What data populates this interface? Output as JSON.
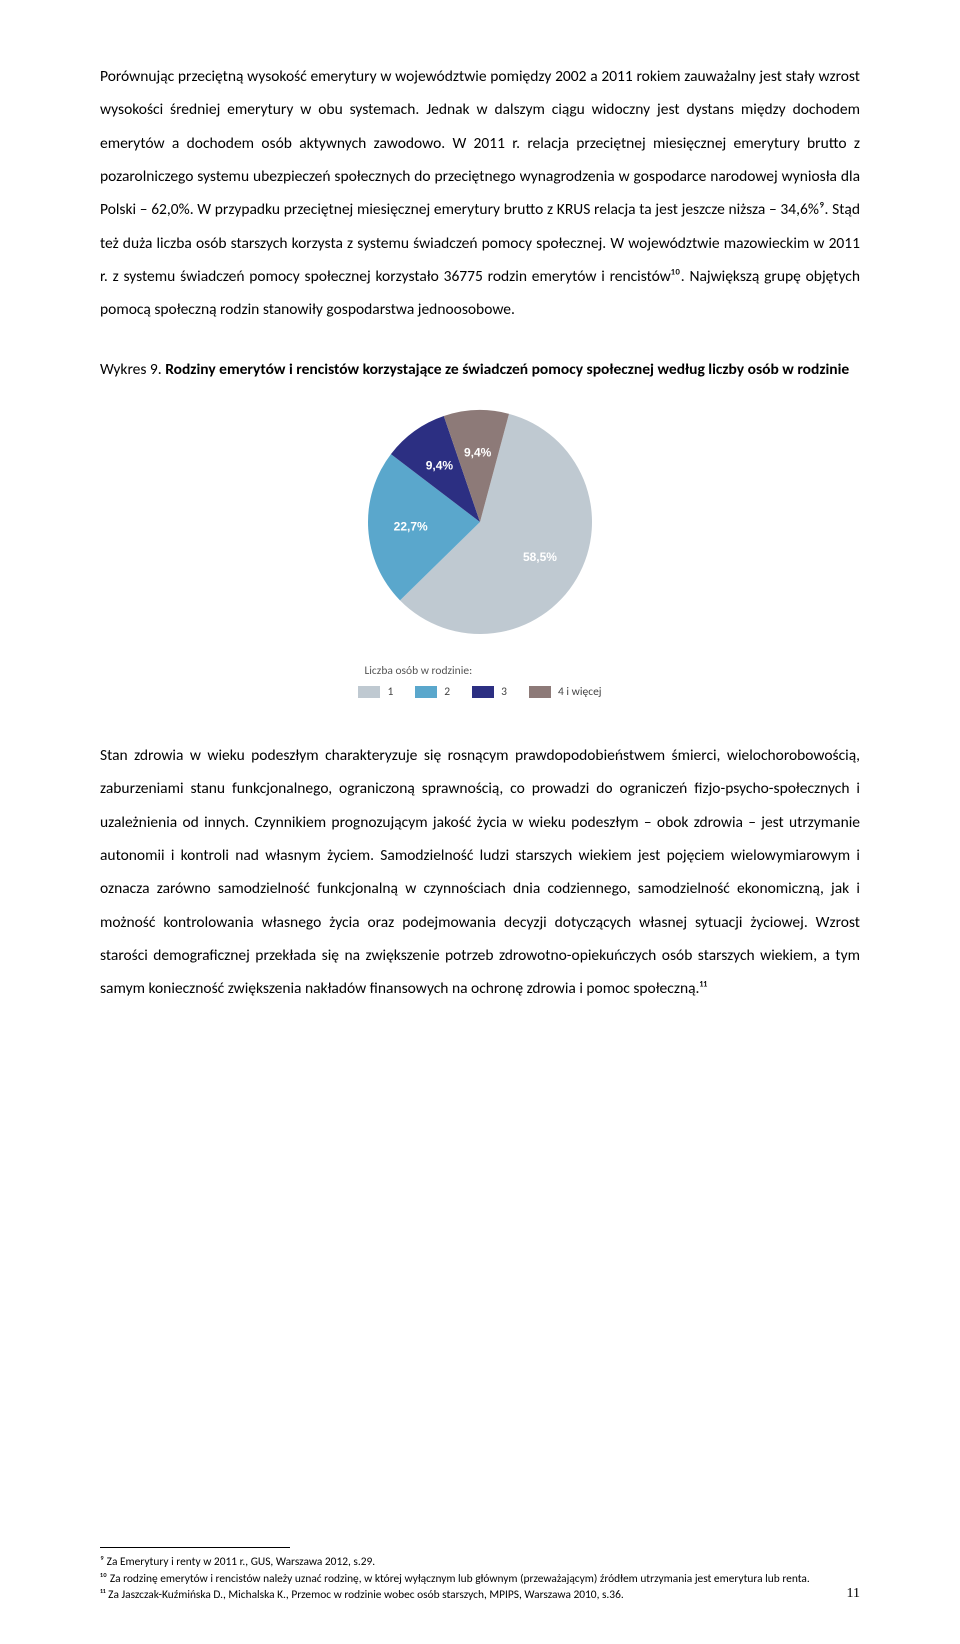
{
  "paragraph1": "Porównując przeciętną wysokość emerytury w województwie pomiędzy 2002 a 2011 rokiem zauważalny jest stały wzrost wysokości średniej emerytury w obu systemach. Jednak w dalszym ciągu widoczny jest dystans między dochodem emerytów a dochodem osób aktywnych zawodowo. W 2011 r. relacja przeciętnej miesięcznej emerytury brutto z pozarolniczego systemu ubezpieczeń społecznych do przeciętnego wynagrodzenia w gospodarce narodowej wyniosła dla Polski – 62,0%. W przypadku przeciętnej miesięcznej emerytury brutto z KRUS relacja ta jest jeszcze niższa – 34,6%⁹. Stąd też duża liczba osób starszych korzysta z systemu świadczeń pomocy społecznej. W województwie mazowieckim w 2011 r. z systemu świadczeń pomocy społecznej korzystało 36775 rodzin emerytów i rencistów¹⁰. Największą grupę objętych pomocą społeczną rodzin stanowiły gospodarstwa jednoosobowe.",
  "chart_title_prefix": "Wykres 9. ",
  "chart_title_bold": "Rodziny emerytów i rencistów korzystające ze świadczeń pomocy społecznej według liczby osób w rodzinie",
  "pie": {
    "type": "pie",
    "background_color": "#ffffff",
    "radius": 112,
    "slices": [
      {
        "label": "58,5%",
        "value": 58.5,
        "color": "#bfc9d1",
        "label_color": "#ffffff"
      },
      {
        "label": "22,7%",
        "value": 22.7,
        "color": "#5aa7cc",
        "label_color": "#ffffff"
      },
      {
        "label": "9,4%",
        "value": 9.4,
        "color": "#2c2f82",
        "label_color": "#ffffff"
      },
      {
        "label": "9,4%",
        "value": 9.4,
        "color": "#8d7a78",
        "label_color": "#ffffff"
      }
    ],
    "start_angle_deg": -75
  },
  "legend": {
    "title": "Liczba osób w rodzinie:",
    "items": [
      {
        "color": "#bfc9d1",
        "label": "1"
      },
      {
        "color": "#5aa7cc",
        "label": "2"
      },
      {
        "color": "#2c2f82",
        "label": "3"
      },
      {
        "color": "#8d7a78",
        "label": "4 i więcej"
      }
    ]
  },
  "paragraph2": "Stan zdrowia w wieku podeszłym charakteryzuje się rosnącym prawdopodobieństwem śmierci, wielochorobowością, zaburzeniami stanu funkcjonalnego, ograniczoną sprawnością, co prowadzi do ograniczeń fizjo-psycho-społecznych i uzależnienia od innych. Czynnikiem prognozującym jakość życia w wieku podeszłym – obok zdrowia – jest utrzymanie autonomii i kontroli nad własnym życiem. Samodzielność ludzi starszych wiekiem jest pojęciem wielowymiarowym i oznacza zarówno samodzielność funkcjonalną w czynnościach dnia codziennego, samodzielność ekonomiczną, jak i możność kontrolowania własnego życia oraz podejmowania decyzji dotyczących własnej sytuacji życiowej. Wzrost starości demograficznej przekłada się na zwiększenie potrzeb zdrowotno-opiekuńczych osób starszych wiekiem, a tym samym konieczność zwiększenia nakładów finansowych na ochronę zdrowia i pomoc społeczną.¹¹",
  "footnotes": [
    "⁹ Za Emerytury i renty w 2011 r., GUS, Warszawa 2012, s.29.",
    "¹⁰ Za rodzinę emerytów i rencistów należy uznać rodzinę, w której wyłącznym lub głównym (przeważającym) źródłem utrzymania jest emerytura lub renta.",
    "¹¹ Za Jaszczak-Kuźmińska D., Michalska K., Przemoc w rodzinie wobec osób starszych, MPIPS, Warszawa 2010, s.36."
  ],
  "page_number": "11"
}
